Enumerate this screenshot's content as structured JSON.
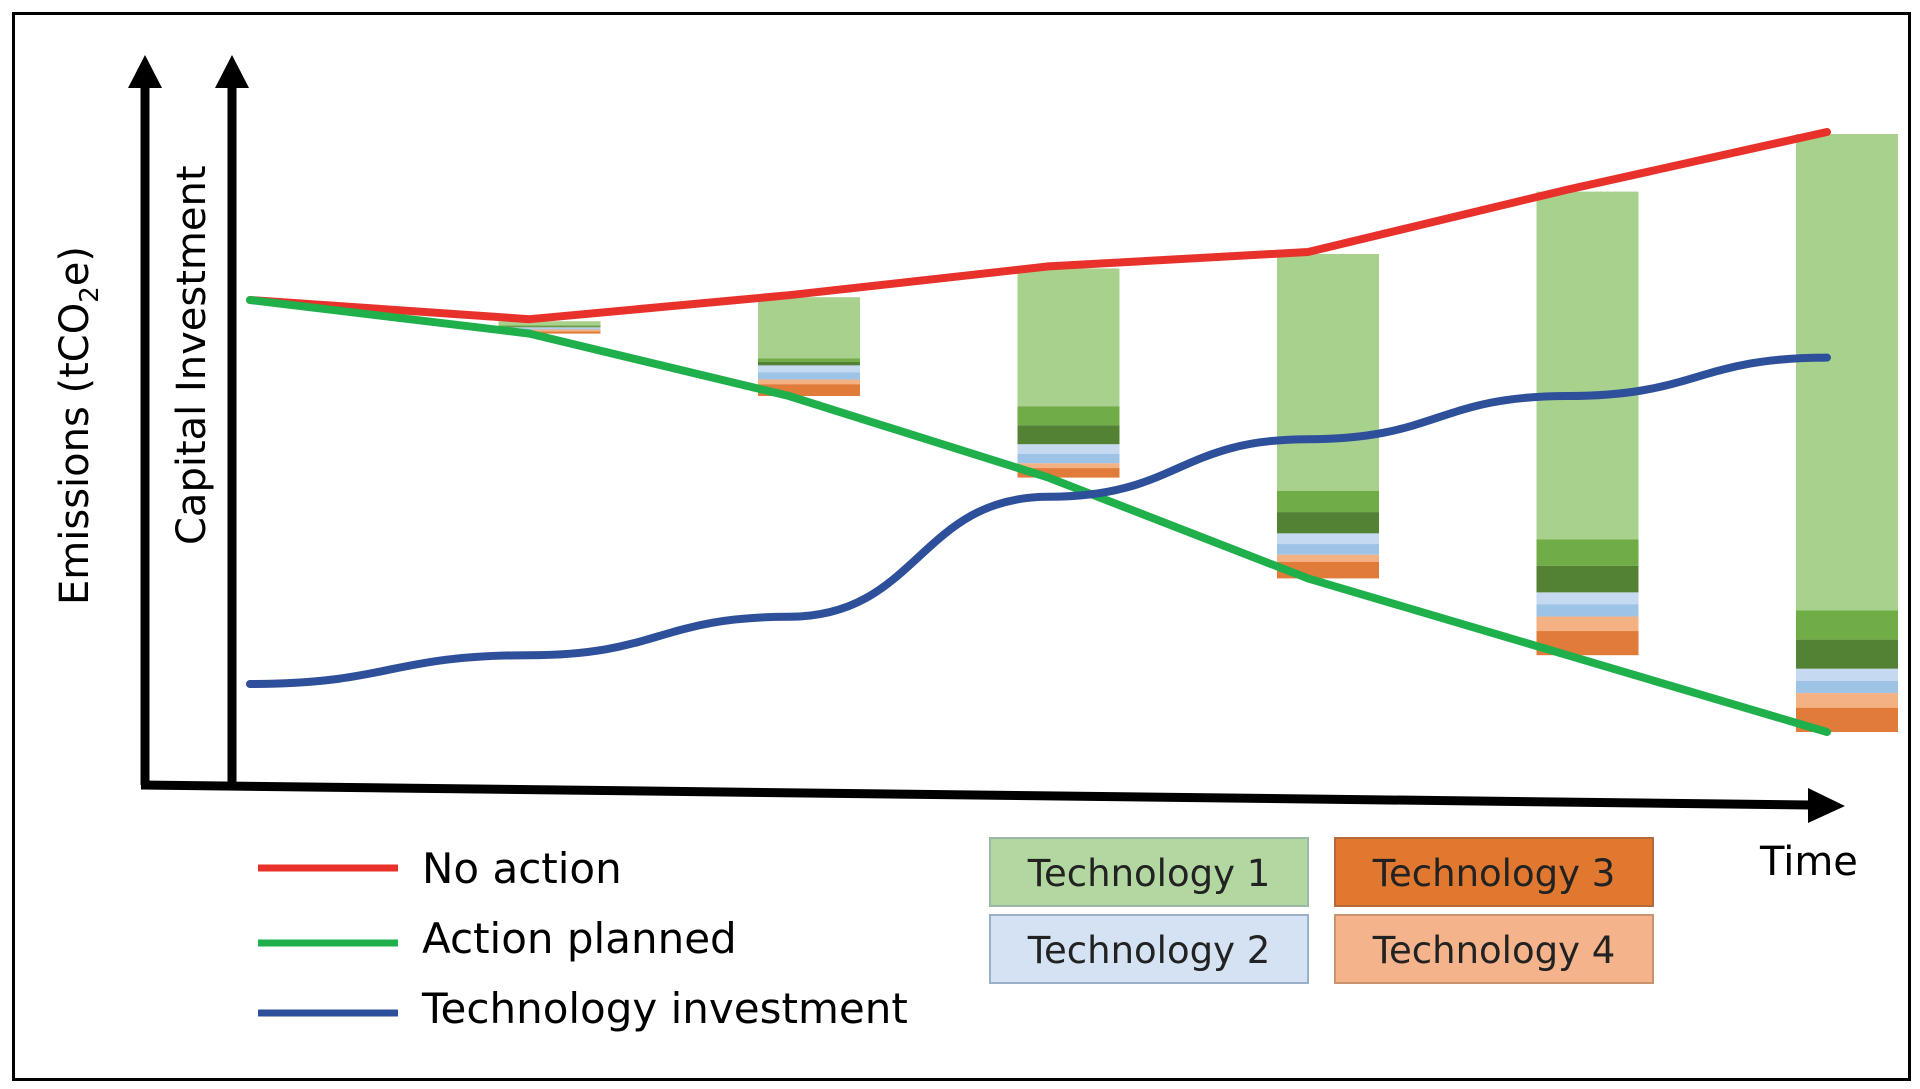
{
  "chart_data": {
    "type": "line",
    "axes": {
      "x_label": "Time",
      "y_label_outer": "Emissions (tCO",
      "y_label_outer_sub": "2",
      "y_label_outer_end": "e)",
      "y_label_inner": "Capital Investment"
    },
    "x": [
      0,
      1,
      2,
      3,
      4,
      5,
      6
    ],
    "series": [
      {
        "name": "No action",
        "color": "#e8312a",
        "values": [
          10.0,
          9.6,
          10.1,
          10.7,
          11.0,
          12.3,
          13.5
        ]
      },
      {
        "name": "Action planned",
        "color": "#1fb04c",
        "values": [
          10.0,
          9.3,
          8.0,
          6.3,
          4.2,
          2.6,
          1.0
        ]
      },
      {
        "name": "Technology investment",
        "color": "#2e4f9a",
        "values": [
          2.0,
          2.6,
          3.4,
          5.9,
          7.1,
          8.0,
          8.8
        ]
      }
    ],
    "ylim": [
      0,
      15
    ],
    "stacks_note": "Gap between No action and Action planned filled by technology bars",
    "stacks": [
      {
        "x": 1,
        "tech1": 0.1,
        "tech1_dark": 0.05,
        "tech2": 0.05,
        "tech3": 0.05,
        "tech4": 0.05
      },
      {
        "x": 2,
        "tech1": 1.3,
        "tech1_dark": 0.15,
        "tech2": 0.3,
        "tech3": 0.25,
        "tech4": 0.1
      },
      {
        "x": 3,
        "tech1": 2.9,
        "tech1_dark": 0.8,
        "tech2": 0.4,
        "tech3": 0.2,
        "tech4": 0.1
      },
      {
        "x": 4,
        "tech1": 5.0,
        "tech1_dark": 0.9,
        "tech2": 0.45,
        "tech3": 0.35,
        "tech4": 0.15
      },
      {
        "x": 5,
        "tech1": 7.2,
        "tech1_dark": 1.1,
        "tech2": 0.5,
        "tech3": 0.5,
        "tech4": 0.3
      },
      {
        "x": 6,
        "tech1": 9.8,
        "tech1_dark": 1.2,
        "tech2": 0.5,
        "tech3": 0.5,
        "tech4": 0.3
      }
    ]
  },
  "legend": {
    "lines": [
      {
        "label": "No action",
        "color": "#e8312a"
      },
      {
        "label": "Action planned",
        "color": "#1fb04c"
      },
      {
        "label": "Technology investment",
        "color": "#2e4f9a"
      }
    ],
    "technologies": [
      {
        "label": "Technology 1",
        "color": "#b2d7a0"
      },
      {
        "label": "Technology 3",
        "color": "#e0782f"
      },
      {
        "label": "Technology 2",
        "color": "#d4e2f3"
      },
      {
        "label": "Technology 4",
        "color": "#f4b38a"
      }
    ]
  },
  "colors": {
    "tech1": "#a9d18e",
    "tech1_mid": "#70ad47",
    "tech1_dark": "#548235",
    "tech2": "#c5d9f1",
    "tech2_b": "#9dc3e6",
    "tech3": "#c55a11",
    "tech3_b": "#e07b39",
    "tech4": "#f4b183"
  }
}
